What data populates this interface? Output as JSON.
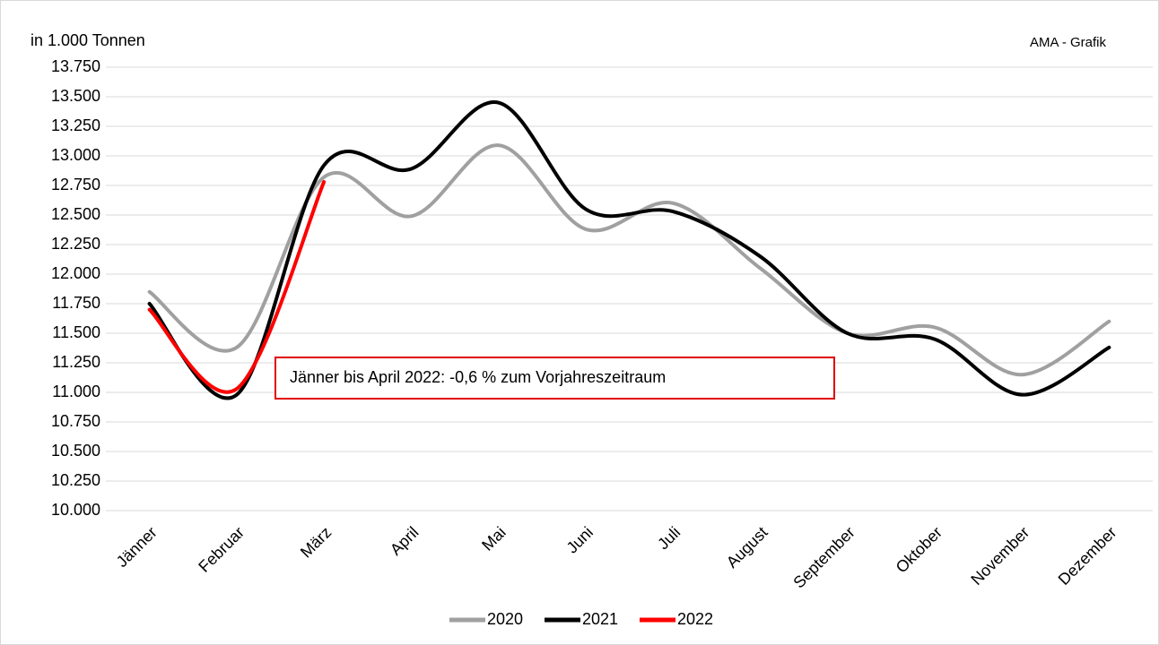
{
  "chart_data": {
    "type": "line",
    "y_label": "in 1.000 Tonnen",
    "source_note": "AMA - Grafik",
    "annotation": "Jänner bis April 2022: -0,6 % zum  Vorjahreszeitraum",
    "categories": [
      "Jänner",
      "Februar",
      "März",
      "April",
      "Mai",
      "Juni",
      "Juli",
      "August",
      "September",
      "Oktober",
      "November",
      "Dezember"
    ],
    "series": [
      {
        "name": "2020",
        "color": "#a0a0a0",
        "values": [
          11850,
          11380,
          12820,
          12490,
          13090,
          12380,
          12600,
          12050,
          11500,
          11550,
          11150,
          11600
        ]
      },
      {
        "name": "2021",
        "color": "#000000",
        "values": [
          11750,
          10980,
          12920,
          12890,
          13450,
          12550,
          12530,
          12150,
          11500,
          11450,
          10980,
          11380
        ]
      },
      {
        "name": "2022",
        "color": "#ff0000",
        "values": [
          11700,
          11030,
          12780,
          null,
          null,
          null,
          null,
          null,
          null,
          null,
          null,
          null
        ]
      }
    ],
    "ylim": [
      10000,
      13750
    ],
    "yticks": [
      {
        "value": 10000,
        "label": "10.000"
      },
      {
        "value": 10250,
        "label": "10.250"
      },
      {
        "value": 10500,
        "label": "10.500"
      },
      {
        "value": 10750,
        "label": "10.750"
      },
      {
        "value": 11000,
        "label": "11.000"
      },
      {
        "value": 11250,
        "label": "11.250"
      },
      {
        "value": 11500,
        "label": "11.500"
      },
      {
        "value": 11750,
        "label": "11.750"
      },
      {
        "value": 12000,
        "label": "12.000"
      },
      {
        "value": 12250,
        "label": "12.250"
      },
      {
        "value": 12500,
        "label": "12.500"
      },
      {
        "value": 12750,
        "label": "12.750"
      },
      {
        "value": 13000,
        "label": "13.000"
      },
      {
        "value": 13250,
        "label": "13.250"
      },
      {
        "value": 13500,
        "label": "13.500"
      },
      {
        "value": 13750,
        "label": "13.750"
      }
    ],
    "grid": true,
    "smooth": true,
    "legend": "bottom"
  }
}
